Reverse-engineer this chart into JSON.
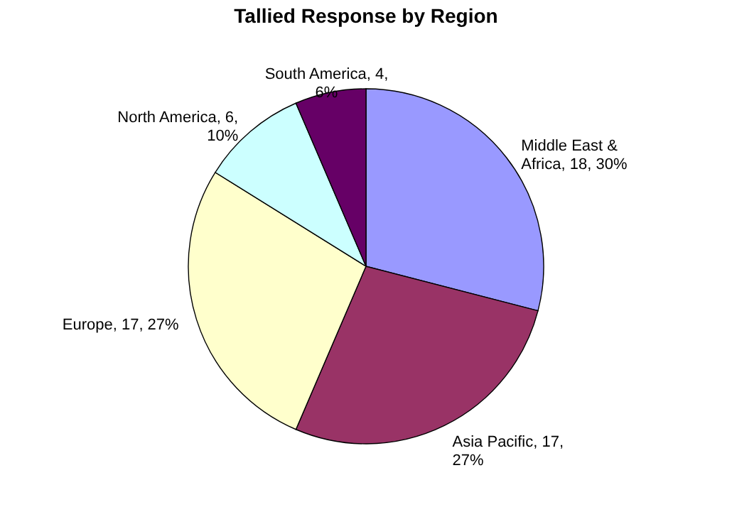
{
  "chart_data": {
    "type": "pie",
    "title": "Tallied Response by Region",
    "categories": [
      "Middle East & Africa",
      "Asia Pacific",
      "Europe",
      "North America",
      "South America"
    ],
    "values": [
      18,
      17,
      17,
      6,
      4
    ],
    "colors": [
      "#9999ff",
      "#993366",
      "#ffffcc",
      "#ccffff",
      "#660066"
    ],
    "value_labels": [
      "18, 30%",
      "17, 27%",
      "17, 27%",
      "6, 10%",
      "4, 6%"
    ]
  }
}
